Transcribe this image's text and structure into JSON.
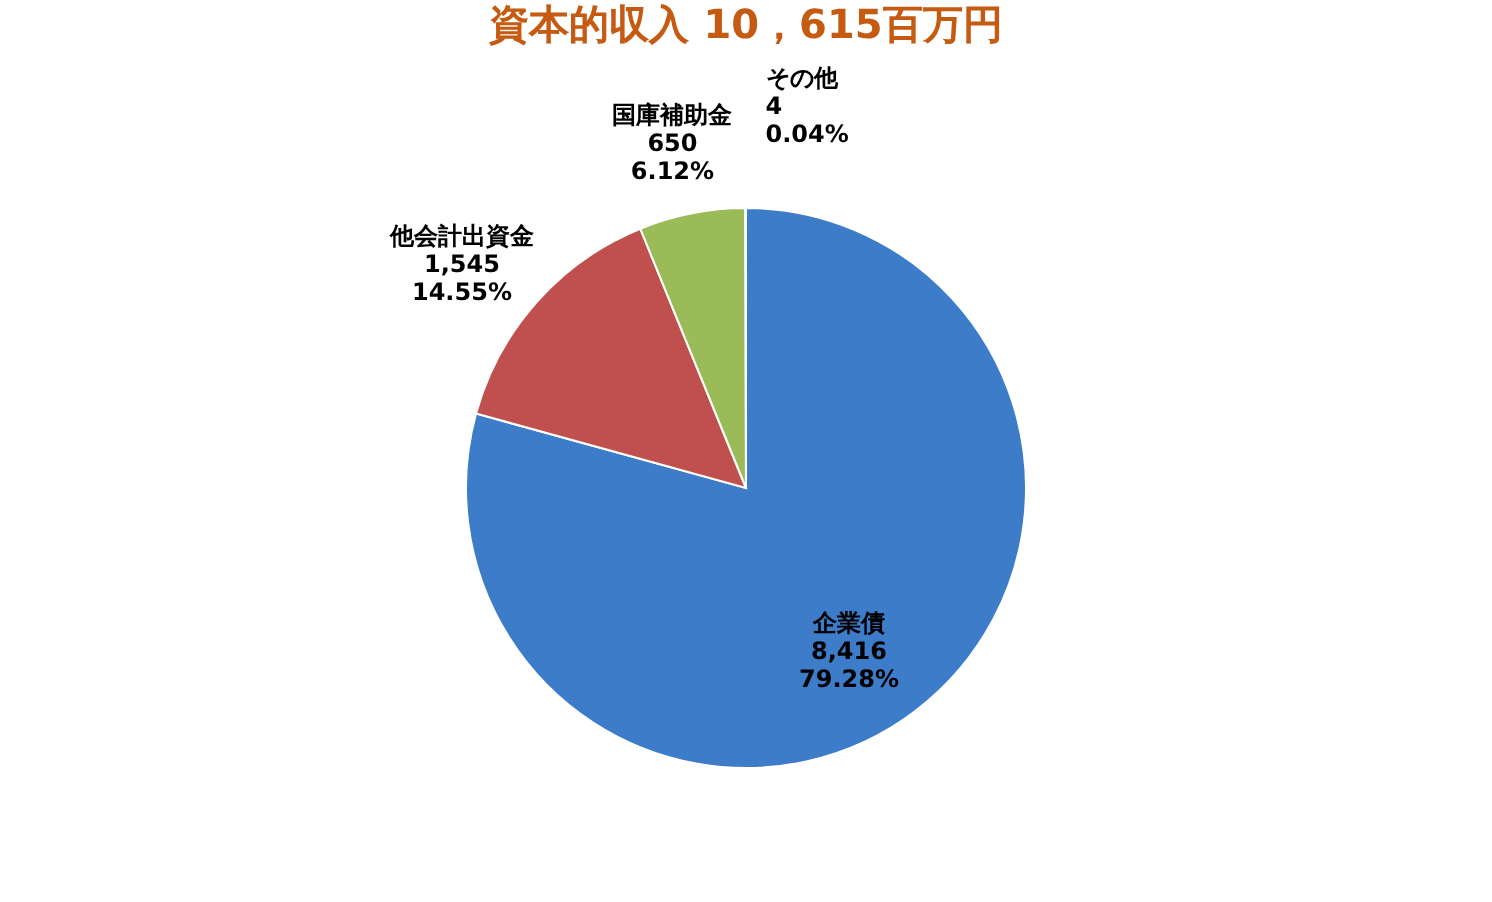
{
  "chart_data": {
    "type": "pie",
    "title": "資本的収入 10，615百万円",
    "categories": [
      "企業債",
      "他会計出資金",
      "国庫補助金",
      "その他"
    ],
    "values": [
      8416,
      1545,
      650,
      4
    ],
    "colors": [
      "#3d7cc9",
      "#c0504d",
      "#9bbb59",
      "#d9d9d9"
    ],
    "value_labels": [
      "8,416\n79.28%",
      "1,545\n14.55%",
      "650\n6.12%",
      "4\n0.04%"
    ],
    "legend": false
  }
}
